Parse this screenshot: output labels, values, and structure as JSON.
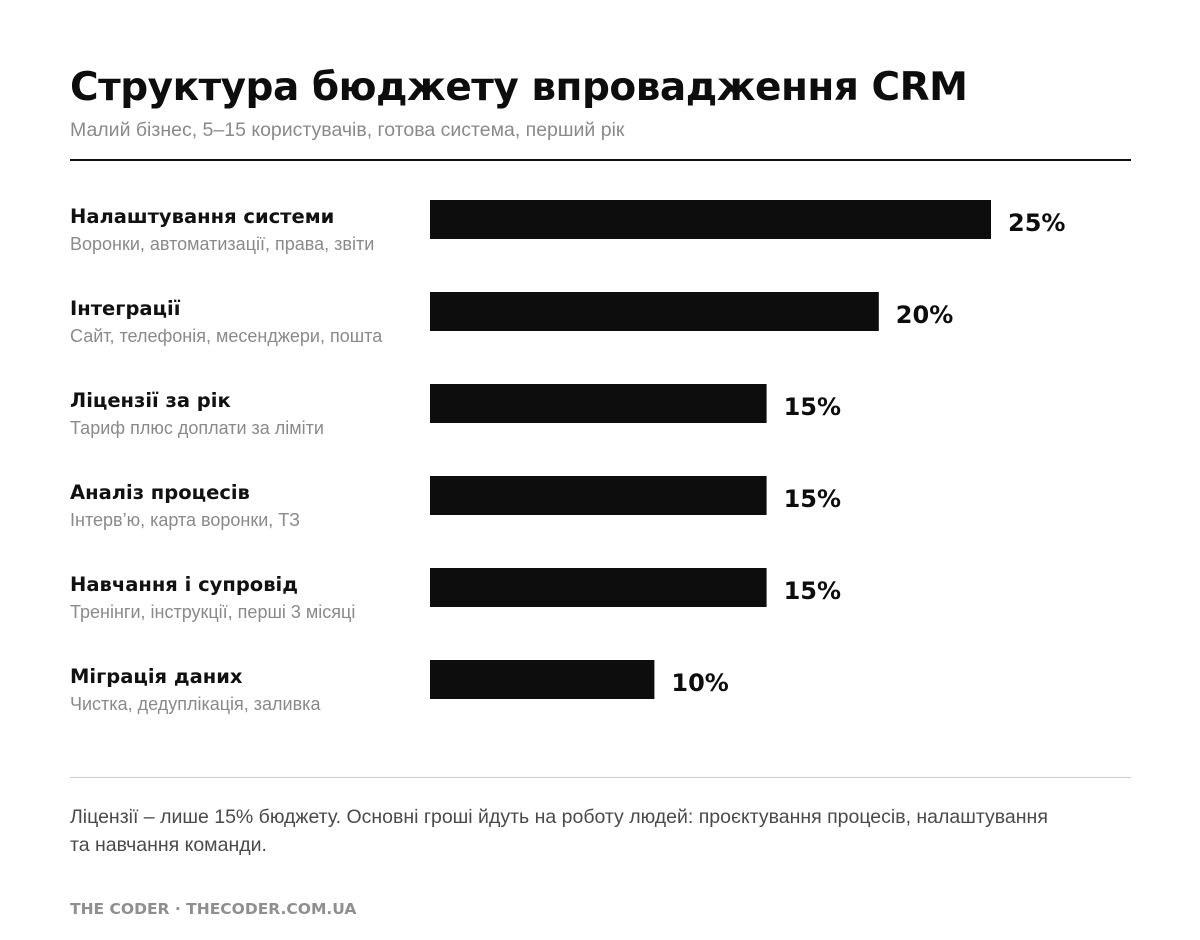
{
  "header": {
    "title": "Структура бюджету впровадження CRM",
    "subtitle": "Малий бізнес, 5–15 користувачів, готова система, перший рік"
  },
  "chart_data": {
    "type": "bar",
    "orientation": "horizontal",
    "categories": [
      "Налаштування системи",
      "Інтеграції",
      "Ліцензії за рік",
      "Аналіз процесів",
      "Навчання і супровід",
      "Міграція даних"
    ],
    "descriptions": [
      "Воронки, автоматизації, права, звіти",
      "Сайт, телефонія, месенджери, пошта",
      "Тариф плюс доплати за ліміти",
      "Інтерв’ю, карта воронки, ТЗ",
      "Тренінги, інструкції, перші 3 місяці",
      "Чистка, дедуплікація, заливка"
    ],
    "values": [
      25,
      20,
      15,
      15,
      15,
      10
    ],
    "value_labels": [
      "25%",
      "20%",
      "15%",
      "15%",
      "15%",
      "10%"
    ],
    "unit": "%",
    "grid": false,
    "legend": "none",
    "bar_color": "#0d0d0d"
  },
  "note": "Ліцензії – лише 15% бюджету. Основні гроші йдуть на роботу людей: проєктування процесів, налаштування та навчання команди.",
  "footer": "THE CODER · THECODER.COM.UA"
}
